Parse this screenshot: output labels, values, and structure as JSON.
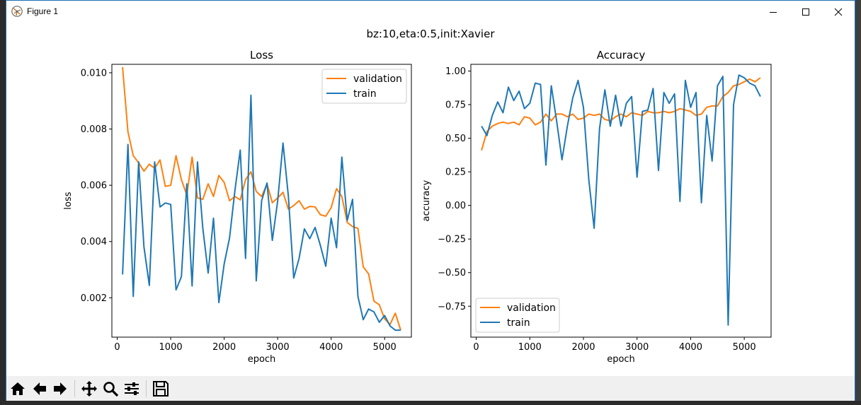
{
  "window": {
    "title": "Figure 1",
    "buttons": [
      "minimize",
      "maximize",
      "close"
    ]
  },
  "figure": {
    "suptitle": "bz:10,eta:0.5,init:Xavier"
  },
  "colors": {
    "validation": "#ff7f0e",
    "train": "#1f77b4"
  },
  "toolbar": {
    "buttons": [
      "home-icon",
      "back-icon",
      "forward-icon",
      "pan-icon",
      "zoom-icon",
      "configure-icon",
      "save-icon"
    ]
  },
  "chart_data": [
    {
      "type": "line",
      "title": "Loss",
      "xlabel": "epoch",
      "ylabel": "loss",
      "xlim": [
        -100,
        5500
      ],
      "ylim": [
        0.0006,
        0.0103
      ],
      "xticks": [
        0,
        1000,
        2000,
        3000,
        4000,
        5000
      ],
      "xtick_labels": [
        "0",
        "1000",
        "2000",
        "3000",
        "4000",
        "5000"
      ],
      "yticks": [
        0.002,
        0.004,
        0.006,
        0.008,
        0.01
      ],
      "ytick_labels": [
        "0.002",
        "0.004",
        "0.006",
        "0.008",
        "0.010"
      ],
      "legend": "top-right",
      "x": [
        100,
        200,
        300,
        400,
        500,
        600,
        700,
        800,
        900,
        1000,
        1100,
        1200,
        1300,
        1400,
        1500,
        1600,
        1700,
        1800,
        1900,
        2000,
        2100,
        2200,
        2300,
        2400,
        2500,
        2600,
        2700,
        2800,
        2900,
        3000,
        3100,
        3200,
        3300,
        3400,
        3500,
        3600,
        3700,
        3800,
        3900,
        4000,
        4100,
        4200,
        4300,
        4400,
        4500,
        4600,
        4700,
        4800,
        4900,
        5000,
        5100,
        5200,
        5300
      ],
      "series": [
        {
          "name": "validation",
          "values": [
            0.0102,
            0.0079,
            0.00705,
            0.0068,
            0.0065,
            0.00675,
            0.0066,
            0.0069,
            0.00596,
            0.006,
            0.00705,
            0.0062,
            0.00565,
            0.007,
            0.00555,
            0.0055,
            0.00605,
            0.0056,
            0.00635,
            0.0061,
            0.00545,
            0.0056,
            0.00548,
            0.0062,
            0.00648,
            0.00578,
            0.0056,
            0.00605,
            0.00538,
            0.00555,
            0.00575,
            0.00515,
            0.00528,
            0.00545,
            0.00515,
            0.00525,
            0.00523,
            0.00495,
            0.0049,
            0.0052,
            0.00588,
            0.0056,
            0.00468,
            0.00453,
            0.00447,
            0.0031,
            0.00285,
            0.00188,
            0.00175,
            0.00125,
            0.00105,
            0.00145,
            0.00085
          ]
        },
        {
          "name": "train",
          "values": [
            0.00283,
            0.00745,
            0.00205,
            0.00683,
            0.00381,
            0.00244,
            0.00683,
            0.00523,
            0.00537,
            0.00532,
            0.00228,
            0.00275,
            0.00605,
            0.00242,
            0.00683,
            0.00448,
            0.00288,
            0.00483,
            0.00183,
            0.0032,
            0.00413,
            0.0058,
            0.00725,
            0.0034,
            0.0092,
            0.0026,
            0.00545,
            0.00608,
            0.00404,
            0.00545,
            0.0075,
            0.0056,
            0.0027,
            0.0034,
            0.00445,
            0.0041,
            0.0045,
            0.00385,
            0.00312,
            0.00483,
            0.00378,
            0.007,
            0.00475,
            0.0055,
            0.00205,
            0.00122,
            0.0016,
            0.0015,
            0.00113,
            0.00137,
            0.001,
            0.00085,
            0.00085
          ]
        }
      ]
    },
    {
      "type": "line",
      "title": "Accuracy",
      "xlabel": "epoch",
      "ylabel": "accuracy",
      "xlim": [
        -100,
        5500
      ],
      "ylim": [
        -0.98,
        1.05
      ],
      "xticks": [
        0,
        1000,
        2000,
        3000,
        4000,
        5000
      ],
      "xtick_labels": [
        "0",
        "1000",
        "2000",
        "3000",
        "4000",
        "5000"
      ],
      "yticks": [
        -0.75,
        -0.5,
        -0.25,
        0.0,
        0.25,
        0.5,
        0.75,
        1.0
      ],
      "ytick_labels": [
        "−0.75",
        "−0.50",
        "−0.25",
        "0.00",
        "0.25",
        "0.50",
        "0.75",
        "1.00"
      ],
      "legend": "bottom-left",
      "x": [
        100,
        200,
        300,
        400,
        500,
        600,
        700,
        800,
        900,
        1000,
        1100,
        1200,
        1300,
        1400,
        1500,
        1600,
        1700,
        1800,
        1900,
        2000,
        2100,
        2200,
        2300,
        2400,
        2500,
        2600,
        2700,
        2800,
        2900,
        3000,
        3100,
        3200,
        3300,
        3400,
        3500,
        3600,
        3700,
        3800,
        3900,
        4000,
        4100,
        4200,
        4300,
        4400,
        4500,
        4600,
        4700,
        4800,
        4900,
        5000,
        5100,
        5200,
        5300
      ],
      "series": [
        {
          "name": "validation",
          "values": [
            0.41,
            0.55,
            0.59,
            0.61,
            0.62,
            0.61,
            0.62,
            0.6,
            0.66,
            0.65,
            0.6,
            0.62,
            0.68,
            0.63,
            0.68,
            0.68,
            0.66,
            0.68,
            0.64,
            0.65,
            0.68,
            0.67,
            0.68,
            0.64,
            0.63,
            0.66,
            0.68,
            0.66,
            0.69,
            0.68,
            0.67,
            0.7,
            0.69,
            0.69,
            0.7,
            0.69,
            0.7,
            0.72,
            0.71,
            0.7,
            0.67,
            0.68,
            0.73,
            0.74,
            0.74,
            0.81,
            0.84,
            0.89,
            0.9,
            0.92,
            0.94,
            0.92,
            0.95
          ]
        },
        {
          "name": "train",
          "values": [
            0.59,
            0.52,
            0.67,
            0.77,
            0.69,
            0.88,
            0.78,
            0.85,
            0.72,
            0.76,
            0.91,
            0.9,
            0.3,
            0.89,
            0.63,
            0.34,
            0.59,
            0.8,
            0.93,
            0.73,
            0.19,
            -0.17,
            0.57,
            0.86,
            0.59,
            0.82,
            0.59,
            0.76,
            0.81,
            0.21,
            0.7,
            0.71,
            0.87,
            0.26,
            0.84,
            0.76,
            0.83,
            0.03,
            0.93,
            0.73,
            0.84,
            0.02,
            0.67,
            0.33,
            0.89,
            0.96,
            -0.89,
            0.75,
            0.97,
            0.95,
            0.91,
            0.89,
            0.81
          ]
        }
      ]
    }
  ]
}
